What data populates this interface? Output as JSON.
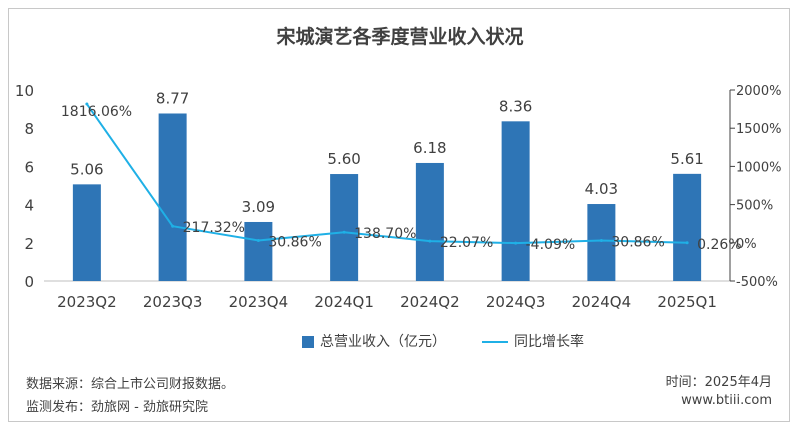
{
  "title": "宋城演艺各季度营业收入状况",
  "chart_data": {
    "type": "bar",
    "categories": [
      "2023Q2",
      "2023Q3",
      "2023Q4",
      "2024Q1",
      "2024Q2",
      "2024Q3",
      "2024Q4",
      "2025Q1"
    ],
    "series": [
      {
        "name": "总营业收入（亿元）",
        "type": "bar",
        "axis": "left",
        "values": [
          5.06,
          8.77,
          3.09,
          5.6,
          6.18,
          8.36,
          4.03,
          5.61
        ],
        "labels": [
          "5.06",
          "8.77",
          "3.09",
          "5.60",
          "6.18",
          "8.36",
          "4.03",
          "5.61"
        ],
        "color": "#2e75b6"
      },
      {
        "name": "同比增长率",
        "type": "line",
        "axis": "right",
        "values": [
          1816.06,
          217.32,
          30.86,
          138.7,
          22.07,
          -4.09,
          30.86,
          0.26
        ],
        "labels": [
          "1816.06%",
          "217.32%",
          "30.86%",
          "138.70%",
          "22.07%",
          "-4.09%",
          "30.86%",
          "0.26%"
        ],
        "color": "#1fb0e6"
      }
    ],
    "y_left": {
      "range": [
        0,
        10
      ],
      "ticks": [
        "0",
        "2",
        "4",
        "6",
        "8",
        "10"
      ]
    },
    "y_right": {
      "range": [
        -500,
        2000
      ],
      "ticks": [
        "-500%",
        "0%",
        "500%",
        "1000%",
        "1500%",
        "2000%"
      ]
    },
    "grid": false,
    "legend": "bottom"
  },
  "footer": {
    "source": "数据来源：综合上市公司财报数据。",
    "publisher": "监测发布：劲旅网 - 劲旅研究院",
    "date": "时间：2025年4月",
    "site": "www.btiii.com"
  }
}
